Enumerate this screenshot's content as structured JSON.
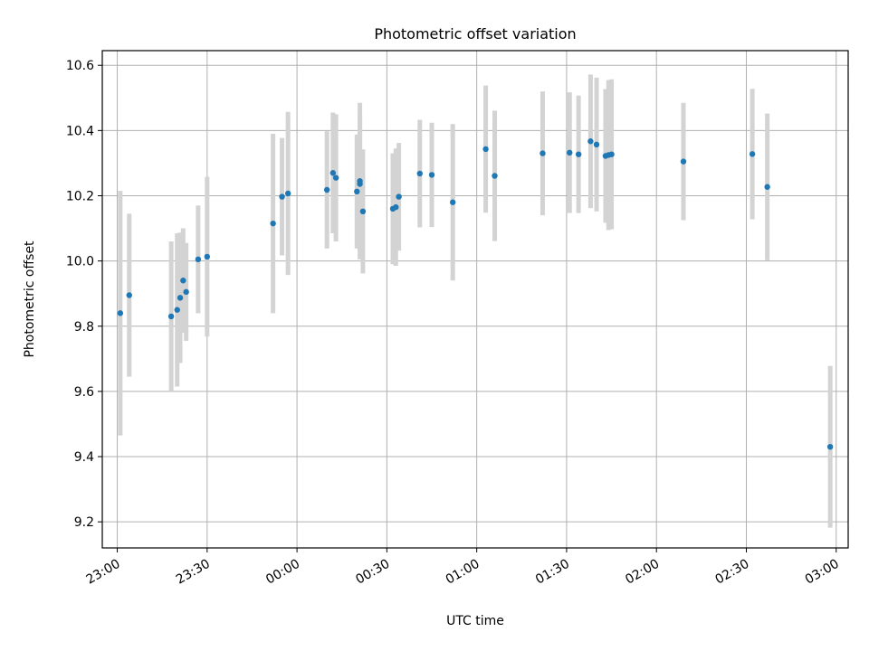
{
  "chart_data": {
    "type": "scatter",
    "title": "Photometric offset variation",
    "xlabel": "UTC time",
    "ylabel": "Photometric offset",
    "x_ticks": [
      "23:00",
      "23:30",
      "00:00",
      "00:30",
      "01:00",
      "01:30",
      "02:00",
      "02:30",
      "03:00"
    ],
    "y_ticks": [
      "9.2",
      "9.4",
      "9.6",
      "9.8",
      "10.0",
      "10.2",
      "10.4",
      "10.6"
    ],
    "xlim": [
      "22:55",
      "03:04"
    ],
    "ylim": [
      9.12,
      10.645
    ],
    "grid": true,
    "colors": {
      "marker": "#1f77b4",
      "errorbar": "#d3d3d3",
      "grid": "#b0b0b0"
    },
    "series": [
      {
        "points": [
          {
            "t": "23:01",
            "y": 9.84,
            "err": 0.375
          },
          {
            "t": "23:04",
            "y": 9.895,
            "err": 0.25
          },
          {
            "t": "23:18",
            "y": 9.83,
            "err": 0.23
          },
          {
            "t": "23:20",
            "y": 9.85,
            "err": 0.235
          },
          {
            "t": "23:21",
            "y": 9.887,
            "err": 0.2
          },
          {
            "t": "23:22",
            "y": 9.94,
            "err": 0.16
          },
          {
            "t": "23:23",
            "y": 9.905,
            "err": 0.15
          },
          {
            "t": "23:27",
            "y": 10.005,
            "err": 0.165
          },
          {
            "t": "23:30",
            "y": 10.013,
            "err": 0.245
          },
          {
            "t": "23:52",
            "y": 10.115,
            "err": 0.275
          },
          {
            "t": "23:55",
            "y": 10.197,
            "err": 0.18
          },
          {
            "t": "23:57",
            "y": 10.207,
            "err": 0.25
          },
          {
            "t": "00:10",
            "y": 10.218,
            "err": 0.18
          },
          {
            "t": "00:12",
            "y": 10.27,
            "err": 0.185
          },
          {
            "t": "00:13",
            "y": 10.255,
            "err": 0.195
          },
          {
            "t": "00:20",
            "y": 10.213,
            "err": 0.175
          },
          {
            "t": "00:21",
            "y": 10.236,
            "err": 0.205
          },
          {
            "t": "00:21",
            "y": 10.245,
            "err": 0.24
          },
          {
            "t": "00:22",
            "y": 10.152,
            "err": 0.19
          },
          {
            "t": "00:32",
            "y": 10.16,
            "err": 0.17
          },
          {
            "t": "00:33",
            "y": 10.165,
            "err": 0.18
          },
          {
            "t": "00:34",
            "y": 10.197,
            "err": 0.165
          },
          {
            "t": "00:41",
            "y": 10.268,
            "err": 0.165
          },
          {
            "t": "00:45",
            "y": 10.264,
            "err": 0.16
          },
          {
            "t": "00:52",
            "y": 10.18,
            "err": 0.24
          },
          {
            "t": "01:03",
            "y": 10.343,
            "err": 0.195
          },
          {
            "t": "01:06",
            "y": 10.261,
            "err": 0.2
          },
          {
            "t": "01:22",
            "y": 10.33,
            "err": 0.19
          },
          {
            "t": "01:31",
            "y": 10.332,
            "err": 0.185
          },
          {
            "t": "01:34",
            "y": 10.327,
            "err": 0.18
          },
          {
            "t": "01:38",
            "y": 10.367,
            "err": 0.205
          },
          {
            "t": "01:40",
            "y": 10.357,
            "err": 0.205
          },
          {
            "t": "01:43",
            "y": 10.322,
            "err": 0.205
          },
          {
            "t": "01:44",
            "y": 10.325,
            "err": 0.23
          },
          {
            "t": "01:45",
            "y": 10.327,
            "err": 0.23
          },
          {
            "t": "02:09",
            "y": 10.305,
            "err": 0.18
          },
          {
            "t": "02:32",
            "y": 10.328,
            "err": 0.2
          },
          {
            "t": "02:37",
            "y": 10.227,
            "err": 0.225
          },
          {
            "t": "02:58",
            "y": 9.43,
            "err": 0.248
          }
        ]
      }
    ]
  }
}
